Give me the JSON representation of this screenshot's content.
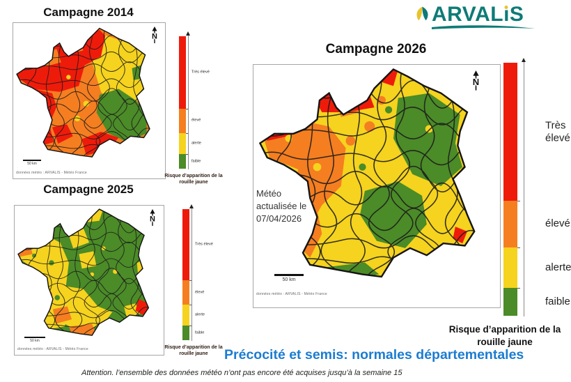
{
  "north_label": "N",
  "logo": {
    "prefix": "ARVAL",
    "i_char": "ı",
    "suffix": "S",
    "full_name": "ARVALIS"
  },
  "legend": {
    "levels": [
      {
        "label": "Très élevé",
        "color": "#EE1B0B",
        "frac": 0.545
      },
      {
        "label": "élevé",
        "color": "#F57E20",
        "frac": 0.185
      },
      {
        "label": "alerte",
        "color": "#F5D31E",
        "frac": 0.16
      },
      {
        "label": "faible",
        "color": "#4B8B28",
        "frac": 0.11
      }
    ],
    "caption": "Risque d’apparition de la rouille jaune"
  },
  "maps": {
    "m2014": {
      "title": "Campagne 2014",
      "scale_label": "50 km",
      "attribution": "données météo : ARVALIS - Météo France"
    },
    "m2025": {
      "title": "Campagne 2025",
      "scale_label": "50 km",
      "attribution": "données météo : ARVALIS - Météo France"
    },
    "m2026": {
      "title": "Campagne 2026",
      "scale_label": "50 km",
      "attribution": "données météo : ARVALIS - Météo France",
      "note": "Météo\nactualisée le\n07/04/2026"
    }
  },
  "footer": {
    "title": "Précocité et semis: normales départementales",
    "warning": "Attention. l’ensemble des données météo n’ont pas encore été acquises jusqu’à la semaine 15"
  },
  "colors": {
    "risk_red": "#EE1B0B",
    "risk_orange": "#F57E20",
    "risk_yellow": "#F5D31E",
    "risk_green": "#4B8B28",
    "accent_blue": "#1C7CD0",
    "logo_teal": "#0E7B76",
    "logo_yellow": "#E7C32D"
  }
}
